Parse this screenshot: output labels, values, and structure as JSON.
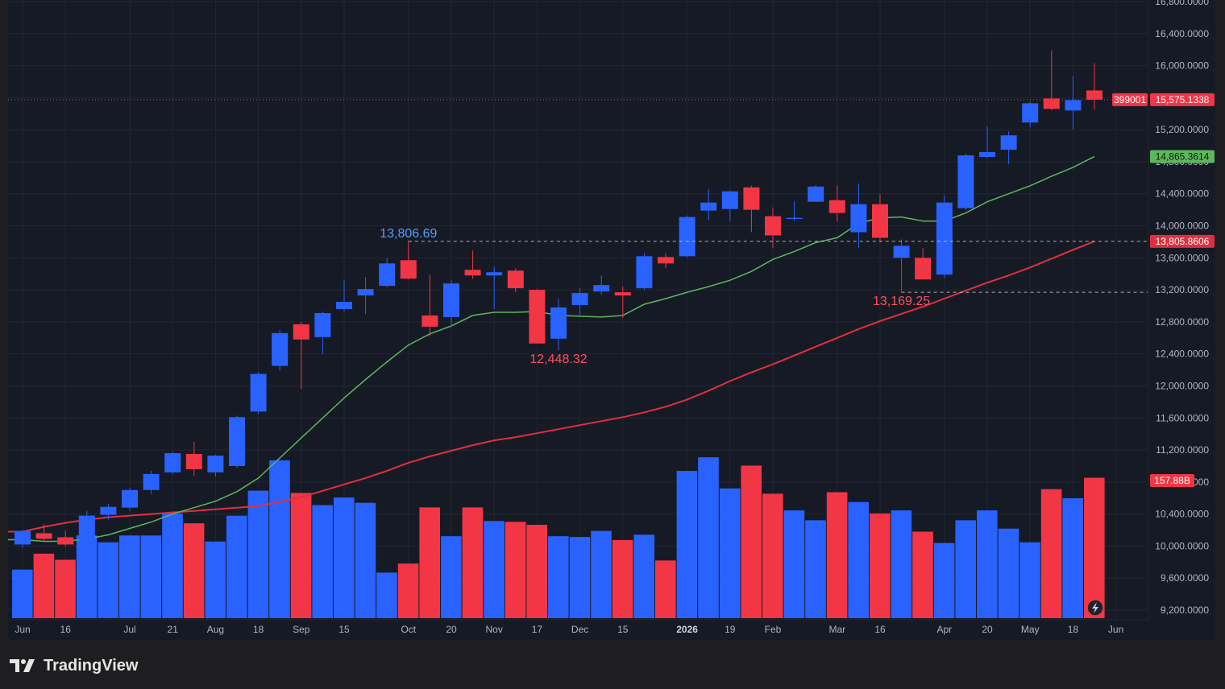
{
  "brand": {
    "name": "TradingView",
    "logo_icon": "tradingview-logo-icon"
  },
  "colors": {
    "background": "#161a25",
    "frame": "#1e1e20",
    "grid": "#232632",
    "up": "#2962ff",
    "down": "#f23645",
    "ma_fast": "#5cb85c",
    "ma_slow": "#e0303f",
    "text": "#b2b5be",
    "up_label": "#5b9cf6",
    "down_label": "#f7525f"
  },
  "chart_data": {
    "type": "candlestick",
    "price_axis": {
      "ylim": [
        9050,
        16800
      ],
      "ticks": [
        "16,800.0000",
        "16,400.0000",
        "16,000.0000",
        "15,600.0000",
        "15,200.0000",
        "14,800.0000",
        "14,400.0000",
        "14,000.0000",
        "13,600.0000",
        "13,200.0000",
        "12,800.0000",
        "12,400.0000",
        "12,000.0000",
        "11,600.0000",
        "11,200.0000",
        "10,800.0000",
        "10,400.0000",
        "10,000.0000",
        "9,600.0000",
        "9,200.0000"
      ]
    },
    "time_axis": {
      "labels": [
        {
          "i": 0,
          "t": "Jun"
        },
        {
          "i": 2,
          "t": "16"
        },
        {
          "i": 5,
          "t": "Jul"
        },
        {
          "i": 7,
          "t": "21"
        },
        {
          "i": 9,
          "t": "Aug"
        },
        {
          "i": 11,
          "t": "18"
        },
        {
          "i": 13,
          "t": "Sep"
        },
        {
          "i": 15,
          "t": "15"
        },
        {
          "i": 18,
          "t": "Oct"
        },
        {
          "i": 20,
          "t": "20"
        },
        {
          "i": 22,
          "t": "Nov"
        },
        {
          "i": 24,
          "t": "17"
        },
        {
          "i": 26,
          "t": "Dec"
        },
        {
          "i": 28,
          "t": "15"
        },
        {
          "i": 31,
          "t": "2026",
          "bold": true
        },
        {
          "i": 33,
          "t": "19"
        },
        {
          "i": 35,
          "t": "Feb"
        },
        {
          "i": 38,
          "t": "Mar"
        },
        {
          "i": 40,
          "t": "16"
        },
        {
          "i": 43,
          "t": "Apr"
        },
        {
          "i": 45,
          "t": "20"
        },
        {
          "i": 47,
          "t": "May"
        },
        {
          "i": 49,
          "t": "18"
        },
        {
          "i": 51,
          "t": "Jun"
        }
      ]
    },
    "candles": [
      {
        "o": 10020,
        "h": 10200,
        "l": 9980,
        "c": 10190
      },
      {
        "o": 10160,
        "h": 10270,
        "l": 10070,
        "c": 10090
      },
      {
        "o": 10110,
        "h": 10190,
        "l": 10000,
        "c": 10020
      },
      {
        "o": 10010,
        "h": 10440,
        "l": 10000,
        "c": 10380
      },
      {
        "o": 10390,
        "h": 10530,
        "l": 10330,
        "c": 10490
      },
      {
        "o": 10480,
        "h": 10730,
        "l": 10440,
        "c": 10700
      },
      {
        "o": 10700,
        "h": 10940,
        "l": 10650,
        "c": 10900
      },
      {
        "o": 10920,
        "h": 11180,
        "l": 10900,
        "c": 11160
      },
      {
        "o": 11150,
        "h": 11300,
        "l": 10880,
        "c": 10960
      },
      {
        "o": 10920,
        "h": 11140,
        "l": 10870,
        "c": 11130
      },
      {
        "o": 11000,
        "h": 11630,
        "l": 10980,
        "c": 11610
      },
      {
        "o": 11680,
        "h": 12170,
        "l": 11650,
        "c": 12150
      },
      {
        "o": 12250,
        "h": 12700,
        "l": 12190,
        "c": 12660
      },
      {
        "o": 12770,
        "h": 12800,
        "l": 11960,
        "c": 12580
      },
      {
        "o": 12610,
        "h": 12930,
        "l": 12400,
        "c": 12910
      },
      {
        "o": 12960,
        "h": 13320,
        "l": 12930,
        "c": 13050
      },
      {
        "o": 13130,
        "h": 13360,
        "l": 12900,
        "c": 13210
      },
      {
        "o": 13250,
        "h": 13600,
        "l": 13230,
        "c": 13530
      },
      {
        "o": 13570,
        "h": 13806.69,
        "l": 13330,
        "c": 13340
      },
      {
        "o": 12880,
        "h": 13390,
        "l": 12620,
        "c": 12740
      },
      {
        "o": 12860,
        "h": 13320,
        "l": 12740,
        "c": 13280
      },
      {
        "o": 13450,
        "h": 13690,
        "l": 13340,
        "c": 13380
      },
      {
        "o": 13380,
        "h": 13490,
        "l": 12960,
        "c": 13420
      },
      {
        "o": 13440,
        "h": 13470,
        "l": 13170,
        "c": 13220
      },
      {
        "o": 13200,
        "h": 13210,
        "l": 12530,
        "c": 12530
      },
      {
        "o": 12590,
        "h": 13090,
        "l": 12448.32,
        "c": 12980
      },
      {
        "o": 13010,
        "h": 13220,
        "l": 12870,
        "c": 13160
      },
      {
        "o": 13180,
        "h": 13380,
        "l": 13140,
        "c": 13260
      },
      {
        "o": 13170,
        "h": 13240,
        "l": 12850,
        "c": 13130
      },
      {
        "o": 13220,
        "h": 13660,
        "l": 13200,
        "c": 13620
      },
      {
        "o": 13610,
        "h": 13660,
        "l": 13470,
        "c": 13530
      },
      {
        "o": 13620,
        "h": 14130,
        "l": 13610,
        "c": 14110
      },
      {
        "o": 14190,
        "h": 14460,
        "l": 14070,
        "c": 14290
      },
      {
        "o": 14210,
        "h": 14440,
        "l": 14060,
        "c": 14430
      },
      {
        "o": 14480,
        "h": 14500,
        "l": 13920,
        "c": 14200
      },
      {
        "o": 14120,
        "h": 14230,
        "l": 13720,
        "c": 13880
      },
      {
        "o": 14090,
        "h": 14310,
        "l": 14060,
        "c": 14100
      },
      {
        "o": 14300,
        "h": 14510,
        "l": 14300,
        "c": 14490
      },
      {
        "o": 14320,
        "h": 14510,
        "l": 14050,
        "c": 14160
      },
      {
        "o": 13920,
        "h": 14530,
        "l": 13720,
        "c": 14270
      },
      {
        "o": 14270,
        "h": 14400,
        "l": 13800,
        "c": 13850
      },
      {
        "o": 13600,
        "h": 13830,
        "l": 13169.25,
        "c": 13750
      },
      {
        "o": 13600,
        "h": 13720,
        "l": 13330,
        "c": 13330
      },
      {
        "o": 13390,
        "h": 14380,
        "l": 13350,
        "c": 14290
      },
      {
        "o": 14220,
        "h": 14900,
        "l": 14200,
        "c": 14880
      },
      {
        "o": 14860,
        "h": 15240,
        "l": 14840,
        "c": 14920
      },
      {
        "o": 14950,
        "h": 15180,
        "l": 14770,
        "c": 15130
      },
      {
        "o": 15290,
        "h": 15550,
        "l": 15230,
        "c": 15530
      },
      {
        "o": 15590,
        "h": 16190,
        "l": 15440,
        "c": 15460
      },
      {
        "o": 15440,
        "h": 15870,
        "l": 15200,
        "c": 15570
      },
      {
        "o": 15690,
        "h": 16030,
        "l": 15450,
        "c": 15575.1338
      }
    ],
    "volume": {
      "max": 2100,
      "values": [
        640,
        850,
        770,
        1090,
        1000,
        1090,
        1090,
        1380,
        1250,
        1010,
        1350,
        1680,
        2080,
        1650,
        1490,
        1590,
        1520,
        600,
        720,
        1460,
        1080,
        1460,
        1280,
        1270,
        1230,
        1080,
        1070,
        1150,
        1030,
        1100,
        760,
        1940,
        2120,
        1710,
        2010,
        1640,
        1420,
        1290,
        1660,
        1530,
        1380,
        1420,
        1140,
        990,
        1290,
        1420,
        1180,
        1000,
        1700,
        1580,
        1850
      ],
      "last_label": "157.88B"
    },
    "ma_fast": [
      10080,
      10060,
      10060,
      10090,
      10140,
      10220,
      10300,
      10400,
      10480,
      10560,
      10680,
      10850,
      11100,
      11350,
      11600,
      11850,
      12080,
      12300,
      12510,
      12650,
      12750,
      12880,
      12920,
      12920,
      12930,
      12880,
      12870,
      12860,
      12880,
      13020,
      13090,
      13170,
      13240,
      13320,
      13430,
      13580,
      13680,
      13790,
      13850,
      14030,
      14100,
      14110,
      14060,
      14060,
      14160,
      14300,
      14400,
      14500,
      14620,
      14730,
      14865.3614
    ],
    "ma_slow": [
      10180,
      10240,
      10290,
      10330,
      10360,
      10380,
      10400,
      10420,
      10440,
      10460,
      10480,
      10500,
      10550,
      10610,
      10690,
      10770,
      10850,
      10940,
      11040,
      11120,
      11190,
      11260,
      11320,
      11360,
      11410,
      11460,
      11510,
      11560,
      11610,
      11670,
      11740,
      11830,
      11940,
      12060,
      12170,
      12270,
      12380,
      12490,
      12600,
      12710,
      12810,
      12900,
      12990,
      13090,
      13190,
      13290,
      13380,
      13480,
      13590,
      13700,
      13805.8606
    ],
    "price_labels": {
      "last_price": "15,575.1338",
      "countdown": "399001",
      "ma_fast": "14,865.3614",
      "ma_slow": "13,805.8606"
    },
    "annotations": [
      {
        "text": "13,806.69",
        "kind": "high",
        "i": 18,
        "price": 13806.69,
        "line_to_axis": true
      },
      {
        "text": "12,448.32",
        "kind": "low",
        "i": 25,
        "price": 12448.32,
        "line_to_axis": false
      },
      {
        "text": "13,169.25",
        "kind": "low",
        "i": 41,
        "price": 13169.25,
        "line_to_axis": true
      }
    ]
  }
}
